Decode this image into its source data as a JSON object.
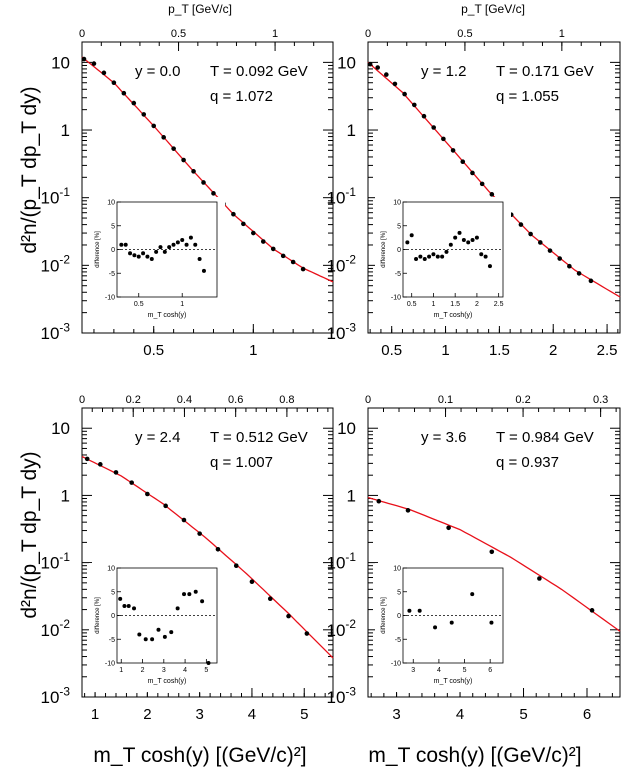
{
  "figure": {
    "y_axis_title": "d²n/(p_T dp_T dy)",
    "x_axis_title": "m_T cosh(y) [(GeV/c)²]",
    "top_axis_title": "p_T [GeV/c]"
  },
  "chart_data": [
    {
      "type": "scatter",
      "title": "y = 0.0",
      "annotations": [
        "y = 0.0",
        "T = 0.092 GeV",
        "q = 1.072"
      ],
      "xlabel": "m_T cosh(y) [(GeV/c)²]",
      "ylabel": "d²n/(p_T dp_T dy)",
      "top_xlabel": "p_T [GeV/c]",
      "yscale": "log",
      "xlim": [
        0.14,
        1.4
      ],
      "ylim": [
        0.001,
        20
      ],
      "xticks": [
        0.5,
        1
      ],
      "xtick_labels": [
        "0.5",
        "1"
      ],
      "top_xlim": [
        0,
        1.3
      ],
      "top_xticks": [
        0,
        0.5,
        1
      ],
      "top_xtick_labels": [
        "0",
        "0.5",
        "1"
      ],
      "yticks": [
        0.001,
        0.01,
        0.1,
        1,
        10
      ],
      "ytick_labels": [
        "10^-3",
        "10^-2",
        "10^-1",
        "1",
        "10"
      ],
      "x": [
        0.15,
        0.2,
        0.25,
        0.3,
        0.35,
        0.4,
        0.45,
        0.5,
        0.55,
        0.6,
        0.65,
        0.7,
        0.75,
        0.8,
        0.85,
        0.9,
        0.95,
        1.0,
        1.05,
        1.1,
        1.15,
        1.2,
        1.25
      ],
      "y": [
        11.2,
        9.6,
        7.0,
        5.0,
        3.5,
        2.5,
        1.7,
        1.15,
        0.78,
        0.53,
        0.36,
        0.245,
        0.168,
        0.116,
        0.081,
        0.057,
        0.041,
        0.03,
        0.0225,
        0.0175,
        0.0138,
        0.0112,
        0.0088
      ],
      "fit_x": [
        0.14,
        0.3,
        0.5,
        0.7,
        0.9,
        1.1,
        1.25,
        1.4
      ],
      "fit_y": [
        12.0,
        5.0,
        1.15,
        0.245,
        0.057,
        0.0175,
        0.0091,
        0.0057
      ],
      "inset": {
        "xlabel": "m_T cosh(y)",
        "ylabel": "difference [%]",
        "xlim": [
          0.25,
          1.4
        ],
        "ylim": [
          -10,
          10
        ],
        "xticks": [
          0.5,
          1
        ],
        "xtick_labels": [
          "0.5",
          "1"
        ],
        "yticks": [
          -10,
          -5,
          0,
          5,
          10
        ],
        "ytick_labels": [
          "-10",
          "-5",
          "0",
          "5",
          "10"
        ],
        "x": [
          0.3,
          0.35,
          0.4,
          0.45,
          0.5,
          0.55,
          0.6,
          0.65,
          0.7,
          0.75,
          0.8,
          0.85,
          0.9,
          0.95,
          1.0,
          1.05,
          1.1,
          1.15,
          1.2,
          1.25
        ],
        "y": [
          1.0,
          1.0,
          -0.8,
          -1.2,
          -1.5,
          -0.8,
          -1.5,
          -2.0,
          -0.5,
          0.5,
          -0.5,
          0.5,
          1.0,
          1.5,
          2.0,
          1.0,
          2.5,
          1.0,
          -2.0,
          -4.5
        ]
      }
    },
    {
      "type": "scatter",
      "title": "y = 1.2",
      "annotations": [
        "y = 1.2",
        "T = 0.171 GeV",
        "q = 1.055"
      ],
      "xlabel": "m_T cosh(y) [(GeV/c)²]",
      "ylabel": "d²n/(p_T dp_T dy)",
      "top_xlabel": "p_T [GeV/c]",
      "yscale": "log",
      "xlim": [
        0.28,
        2.62
      ],
      "ylim": [
        0.001,
        20
      ],
      "xticks": [
        0.5,
        1,
        1.5,
        2,
        2.5
      ],
      "xtick_labels": [
        "0.5",
        "1",
        "1.5",
        "2",
        "2.5"
      ],
      "top_xlim": [
        0,
        1.3
      ],
      "top_xticks": [
        0,
        0.5,
        1
      ],
      "top_xtick_labels": [
        "0",
        "0.5",
        "1"
      ],
      "yticks": [
        0.001,
        0.01,
        0.1,
        1,
        10
      ],
      "ytick_labels": [
        "10^-3",
        "10^-2",
        "10^-1",
        "1",
        "10"
      ],
      "x": [
        0.3,
        0.37,
        0.45,
        0.53,
        0.62,
        0.71,
        0.8,
        0.89,
        0.98,
        1.07,
        1.16,
        1.25,
        1.34,
        1.43,
        1.52,
        1.61,
        1.7,
        1.79,
        1.88,
        1.97,
        2.06,
        2.15,
        2.24,
        2.35
      ],
      "y": [
        9.4,
        8.4,
        6.6,
        4.8,
        3.4,
        2.35,
        1.6,
        1.09,
        0.74,
        0.5,
        0.34,
        0.232,
        0.16,
        0.112,
        0.079,
        0.056,
        0.04,
        0.029,
        0.0218,
        0.0165,
        0.0126,
        0.0097,
        0.0076,
        0.0059
      ],
      "fit_x": [
        0.28,
        0.6,
        1.0,
        1.4,
        1.8,
        2.2,
        2.62
      ],
      "fit_y": [
        10.0,
        3.6,
        0.68,
        0.125,
        0.028,
        0.0085,
        0.0034
      ],
      "inset": {
        "xlabel": "m_T cosh(y)",
        "ylabel": "difference [%]",
        "xlim": [
          0.3,
          2.6
        ],
        "ylim": [
          -10,
          10
        ],
        "xticks": [
          0.5,
          1,
          1.5,
          2,
          2.5
        ],
        "xtick_labels": [
          "0.5",
          "1",
          "1.5",
          "2",
          "2.5"
        ],
        "yticks": [
          -10,
          -5,
          0,
          5,
          10
        ],
        "ytick_labels": [
          "-10",
          "-5",
          "0",
          "5",
          "10"
        ],
        "x": [
          0.4,
          0.5,
          0.6,
          0.7,
          0.8,
          0.9,
          1.0,
          1.1,
          1.2,
          1.3,
          1.4,
          1.5,
          1.6,
          1.7,
          1.8,
          1.9,
          2.0,
          2.1,
          2.2,
          2.3
        ],
        "y": [
          1.5,
          3.0,
          -2.0,
          -1.5,
          -2.0,
          -1.5,
          -1.0,
          -1.5,
          -1.5,
          -0.5,
          1.0,
          2.5,
          3.5,
          2.0,
          1.5,
          2.0,
          2.5,
          -1.0,
          -1.5,
          -3.5
        ]
      }
    },
    {
      "type": "scatter",
      "title": "y = 2.4",
      "annotations": [
        "y = 2.4",
        "T = 0.512 GeV",
        "q = 1.007"
      ],
      "xlabel": "m_T cosh(y) [(GeV/c)²]",
      "ylabel": "d²n/(p_T dp_T dy)",
      "top_xlabel": "p_T [GeV/c]",
      "yscale": "log",
      "xlim": [
        0.75,
        5.55
      ],
      "ylim": [
        0.001,
        20
      ],
      "xticks": [
        1,
        2,
        3,
        4,
        5
      ],
      "xtick_labels": [
        "1",
        "2",
        "3",
        "4",
        "5"
      ],
      "top_xlim": [
        0,
        0.98
      ],
      "top_xticks": [
        0,
        0.2,
        0.4,
        0.6,
        0.8
      ],
      "top_xtick_labels": [
        "0",
        "0.2",
        "0.4",
        "0.6",
        "0.8"
      ],
      "yticks": [
        0.001,
        0.01,
        0.1,
        1,
        10
      ],
      "ytick_labels": [
        "10^-3",
        "10^-2",
        "10^-1",
        "1",
        "10"
      ],
      "x": [
        0.85,
        1.1,
        1.4,
        1.7,
        2.0,
        2.35,
        2.7,
        3.0,
        3.35,
        3.7,
        4.0,
        4.35,
        4.7,
        5.05
      ],
      "y": [
        3.5,
        2.9,
        2.2,
        1.55,
        1.05,
        0.7,
        0.43,
        0.27,
        0.158,
        0.09,
        0.052,
        0.029,
        0.016,
        0.0088
      ],
      "fit_x": [
        0.75,
        1.5,
        2.3,
        3.1,
        3.9,
        4.7,
        5.55
      ],
      "fit_y": [
        3.8,
        1.95,
        0.75,
        0.24,
        0.068,
        0.0175,
        0.0038
      ],
      "inset": {
        "xlabel": "m_T cosh(y)",
        "ylabel": "difference [%]",
        "xlim": [
          0.8,
          5.5
        ],
        "ylim": [
          -10,
          10
        ],
        "xticks": [
          1,
          2,
          3,
          4,
          5
        ],
        "xtick_labels": [
          "1",
          "2",
          "3",
          "4",
          "5"
        ],
        "yticks": [
          -10,
          -5,
          0,
          5,
          10
        ],
        "ytick_labels": [
          "-10",
          "-5",
          "0",
          "5",
          "10"
        ],
        "x": [
          0.95,
          1.15,
          1.35,
          1.6,
          1.85,
          2.15,
          2.45,
          2.75,
          3.05,
          3.35,
          3.65,
          3.95,
          4.2,
          4.5,
          4.8,
          5.1
        ],
        "y": [
          3.5,
          2.0,
          2.0,
          1.5,
          -4.0,
          -5.0,
          -5.0,
          -3.0,
          -4.5,
          -3.5,
          1.5,
          4.5,
          4.5,
          5.0,
          3.0,
          -10.0
        ]
      }
    },
    {
      "type": "scatter",
      "title": "y = 3.6",
      "annotations": [
        "y = 3.6",
        "T = 0.984 GeV",
        "q = 0.937"
      ],
      "xlabel": "m_T cosh(y) [(GeV/c)²]",
      "ylabel": "d²n/(p_T dp_T dy)",
      "top_xlabel": "p_T [GeV/c]",
      "yscale": "log",
      "xlim": [
        2.55,
        6.52
      ],
      "ylim": [
        0.001,
        20
      ],
      "xticks": [
        3,
        4,
        5,
        6
      ],
      "xtick_labels": [
        "3",
        "4",
        "5",
        "6"
      ],
      "top_xlim": [
        0,
        0.325
      ],
      "top_xticks": [
        0,
        0.1,
        0.2,
        0.3
      ],
      "top_xtick_labels": [
        "0",
        "0.1",
        "0.2",
        "0.3"
      ],
      "yticks": [
        0.001,
        0.01,
        0.1,
        1,
        10
      ],
      "ytick_labels": [
        "10^-3",
        "10^-2",
        "10^-1",
        "1",
        "10"
      ],
      "x": [
        2.72,
        3.18,
        3.82,
        4.5,
        5.25,
        6.08
      ],
      "y": [
        0.82,
        0.6,
        0.33,
        0.145,
        0.058,
        0.0195
      ],
      "fit_x": [
        2.55,
        3.2,
        4.0,
        4.8,
        5.6,
        6.52
      ],
      "fit_y": [
        0.93,
        0.62,
        0.31,
        0.12,
        0.04,
        0.0095
      ],
      "inset": {
        "xlabel": "m_T cosh(y)",
        "ylabel": "difference [%]",
        "xlim": [
          2.6,
          6.5
        ],
        "ylim": [
          -10,
          10
        ],
        "xticks": [
          3,
          4,
          5,
          6
        ],
        "xtick_labels": [
          "3",
          "4",
          "5",
          "6"
        ],
        "yticks": [
          -10,
          -5,
          0,
          5,
          10
        ],
        "ytick_labels": [
          "-10",
          "-5",
          "0",
          "5",
          "10"
        ],
        "x": [
          2.85,
          3.25,
          3.85,
          4.5,
          5.3,
          6.05
        ],
        "y": [
          1.0,
          1.0,
          -2.5,
          -1.5,
          4.5,
          -1.5
        ]
      }
    }
  ]
}
